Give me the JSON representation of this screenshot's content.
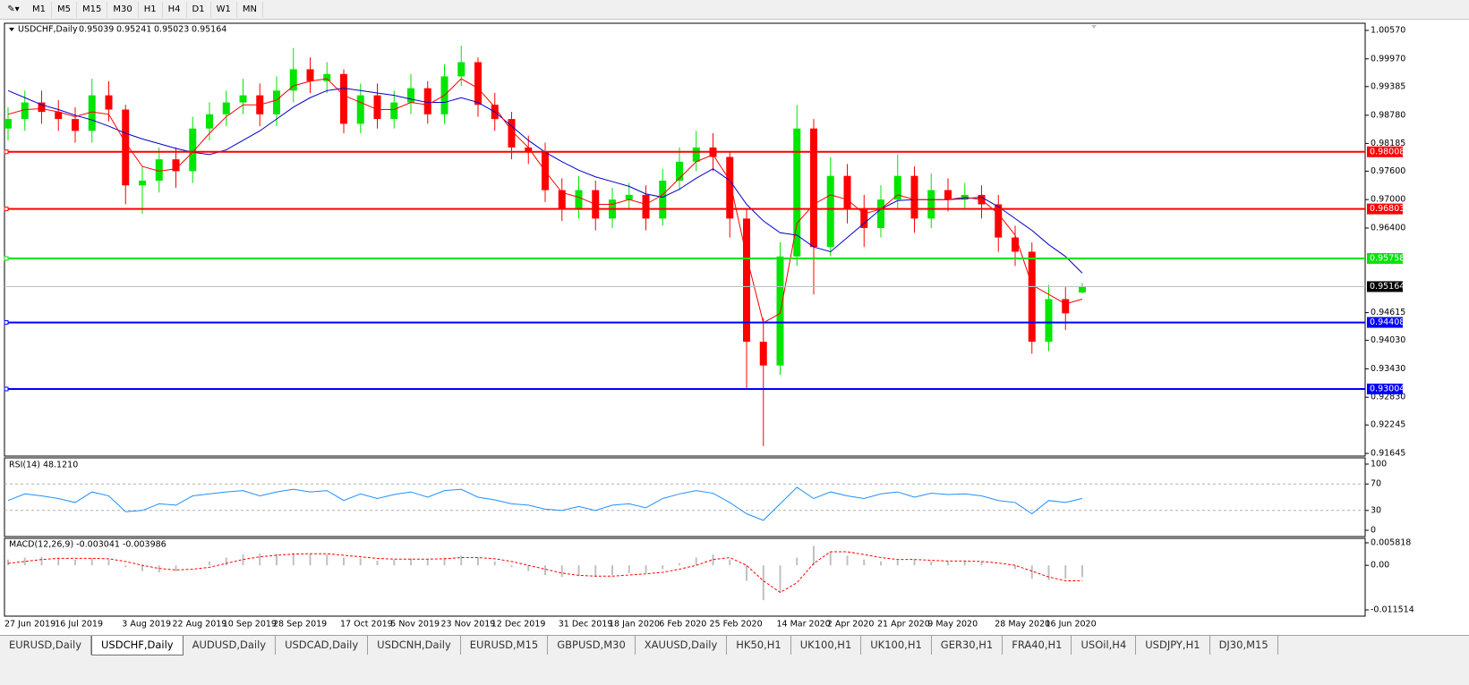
{
  "toolbar": {
    "timeframes": [
      "M1",
      "M5",
      "M15",
      "M30",
      "H1",
      "H4",
      "D1",
      "W1",
      "MN"
    ]
  },
  "chart_data": [
    {
      "type": "candlestick",
      "title": "USDCHF,Daily",
      "up_color": "#00e600",
      "down_color": "#ff0000",
      "ma_fast_color": "#ff0000",
      "ma_slow_color": "#0000c8",
      "price_line_color": "#c0c0c0",
      "categories": [
        "27 Jun 2019",
        null,
        null,
        "16 Jul 2019",
        null,
        null,
        null,
        "3 Aug 2019",
        null,
        null,
        "22 Aug 2019",
        null,
        null,
        "10 Sep 2019",
        null,
        null,
        "28 Sep 2019",
        null,
        null,
        null,
        "17 Oct 2019",
        null,
        null,
        "5 Nov 2019",
        null,
        null,
        "23 Nov 2019",
        null,
        null,
        "12 Dec 2019",
        null,
        null,
        null,
        "31 Dec 2019",
        null,
        null,
        "18 Jan 2020",
        null,
        null,
        "6 Feb 2020",
        null,
        null,
        "25 Feb 2020",
        null,
        null,
        null,
        "14 Mar 2020",
        null,
        null,
        "2 Apr 2020",
        null,
        null,
        "21 Apr 2020",
        null,
        null,
        "9 May 2020",
        null,
        null,
        null,
        "28 May 2020",
        null,
        null,
        "16 Jun 2020",
        null,
        null
      ],
      "open": [
        0.985,
        0.987,
        0.9905,
        0.9885,
        0.987,
        0.9845,
        0.992,
        0.989,
        0.973,
        0.974,
        0.9785,
        0.976,
        0.985,
        0.988,
        0.9905,
        0.992,
        0.988,
        0.993,
        0.9975,
        0.995,
        0.9965,
        0.986,
        0.992,
        0.987,
        0.9905,
        0.9935,
        0.988,
        0.996,
        0.999,
        0.99,
        0.987,
        0.981,
        0.98,
        0.972,
        0.968,
        0.972,
        0.966,
        0.97,
        0.971,
        0.966,
        0.974,
        0.978,
        0.981,
        0.979,
        0.966,
        0.94,
        0.935,
        0.958,
        0.985,
        0.96,
        0.975,
        0.968,
        0.964,
        0.97,
        0.975,
        0.966,
        0.972,
        0.97,
        0.971,
        0.969,
        0.962,
        0.959,
        0.94,
        0.949,
        0.95039
      ],
      "high": [
        0.9895,
        0.993,
        0.993,
        0.991,
        0.9895,
        0.9955,
        0.995,
        0.99,
        0.977,
        0.981,
        0.981,
        0.9875,
        0.9905,
        0.993,
        0.9955,
        0.9945,
        0.996,
        1.002,
        1.0,
        0.999,
        0.9975,
        0.9945,
        0.9945,
        0.993,
        0.9965,
        0.995,
        0.9985,
        1.0025,
        1.0,
        0.9925,
        0.9885,
        0.9835,
        0.982,
        0.9745,
        0.975,
        0.974,
        0.9725,
        0.9735,
        0.973,
        0.9765,
        0.981,
        0.9845,
        0.984,
        0.98,
        0.968,
        0.945,
        0.961,
        0.99,
        0.987,
        0.979,
        0.9775,
        0.971,
        0.973,
        0.9795,
        0.977,
        0.9755,
        0.9745,
        0.9735,
        0.973,
        0.971,
        0.9645,
        0.961,
        0.952,
        0.9515,
        0.95241
      ],
      "low": [
        0.9825,
        0.9845,
        0.986,
        0.9845,
        0.982,
        0.982,
        0.9865,
        0.969,
        0.967,
        0.9715,
        0.9725,
        0.9735,
        0.9825,
        0.9855,
        0.988,
        0.9855,
        0.9855,
        0.9905,
        0.9925,
        0.9925,
        0.984,
        0.984,
        0.985,
        0.985,
        0.988,
        0.986,
        0.986,
        0.994,
        0.9875,
        0.9845,
        0.9785,
        0.9775,
        0.9695,
        0.9655,
        0.966,
        0.9635,
        0.964,
        0.968,
        0.9635,
        0.9645,
        0.972,
        0.976,
        0.976,
        0.962,
        0.93,
        0.918,
        0.933,
        0.956,
        0.95,
        0.958,
        0.965,
        0.96,
        0.962,
        0.968,
        0.963,
        0.964,
        0.9675,
        0.968,
        0.966,
        0.959,
        0.956,
        0.9375,
        0.938,
        0.9425,
        0.95023
      ],
      "close": [
        0.987,
        0.9905,
        0.9885,
        0.987,
        0.9845,
        0.992,
        0.989,
        0.973,
        0.974,
        0.9785,
        0.976,
        0.985,
        0.988,
        0.9905,
        0.992,
        0.988,
        0.993,
        0.9975,
        0.995,
        0.9965,
        0.986,
        0.992,
        0.987,
        0.9905,
        0.9935,
        0.988,
        0.996,
        0.999,
        0.99,
        0.987,
        0.981,
        0.98,
        0.972,
        0.968,
        0.972,
        0.966,
        0.97,
        0.971,
        0.966,
        0.974,
        0.978,
        0.981,
        0.979,
        0.966,
        0.94,
        0.935,
        0.958,
        0.985,
        0.96,
        0.975,
        0.968,
        0.964,
        0.97,
        0.975,
        0.966,
        0.972,
        0.97,
        0.971,
        0.969,
        0.962,
        0.959,
        0.94,
        0.949,
        0.946,
        0.95164
      ],
      "ma_fast": [
        0.988,
        0.989,
        0.9892,
        0.9885,
        0.9875,
        0.9885,
        0.988,
        0.982,
        0.977,
        0.976,
        0.9765,
        0.98,
        0.984,
        0.9875,
        0.99,
        0.99,
        0.991,
        0.994,
        0.995,
        0.9955,
        0.992,
        0.9905,
        0.989,
        0.989,
        0.9905,
        0.99,
        0.992,
        0.9955,
        0.9935,
        0.9895,
        0.9845,
        0.981,
        0.976,
        0.9715,
        0.9705,
        0.969,
        0.969,
        0.97,
        0.969,
        0.971,
        0.9745,
        0.978,
        0.9795,
        0.974,
        0.958,
        0.944,
        0.946,
        0.965,
        0.969,
        0.971,
        0.97,
        0.967,
        0.968,
        0.971,
        0.97,
        0.97,
        0.97,
        0.9705,
        0.97,
        0.967,
        0.9625,
        0.952,
        0.95,
        0.948,
        0.949
      ],
      "ma_slow": [
        0.993,
        0.9915,
        0.99,
        0.989,
        0.9878,
        0.9868,
        0.9855,
        0.984,
        0.9828,
        0.9818,
        0.9808,
        0.98,
        0.9795,
        0.9805,
        0.9825,
        0.9845,
        0.987,
        0.9895,
        0.9915,
        0.993,
        0.9935,
        0.993,
        0.9925,
        0.992,
        0.9912,
        0.9905,
        0.9905,
        0.9915,
        0.9905,
        0.9885,
        0.9855,
        0.9825,
        0.98,
        0.978,
        0.9762,
        0.9748,
        0.9738,
        0.9728,
        0.9712,
        0.9705,
        0.9722,
        0.9745,
        0.9765,
        0.974,
        0.969,
        0.9655,
        0.963,
        0.9625,
        0.96,
        0.959,
        0.962,
        0.965,
        0.968,
        0.9698,
        0.97,
        0.97,
        0.97,
        0.9702,
        0.9705,
        0.9685,
        0.966,
        0.9635,
        0.9605,
        0.958,
        0.9545
      ],
      "ylim": [
        0.91645,
        1.0057
      ],
      "yticks": [
        {
          "value": 1.0057,
          "label": "1.00570"
        },
        {
          "value": 0.9997,
          "label": "0.99970"
        },
        0.99385,
        {
          "value": 0.9878,
          "label": "0.98780"
        },
        0.98185,
        {
          "value": 0.976,
          "label": "0.97600"
        },
        {
          "value": 0.97,
          "label": "0.97000"
        },
        {
          "value": 0.964,
          "label": "0.96400"
        },
        0.94615,
        {
          "value": 0.9403,
          "label": "0.94030"
        },
        {
          "value": 0.9343,
          "label": "0.93430"
        },
        {
          "value": 0.9283,
          "label": "0.92830"
        },
        0.92245,
        0.91645
      ],
      "levels": [
        {
          "value": 0.98008,
          "color": "#ff0000"
        },
        {
          "value": 0.96803,
          "color": "#ff0000"
        },
        {
          "value": 0.95758,
          "color": "#00e600"
        },
        {
          "value": 0.94408,
          "color": "#0000ff"
        },
        {
          "value": 0.93004,
          "color": "#0000ff"
        }
      ]
    },
    {
      "type": "line",
      "title": "RSI(14) 48.1210",
      "color": "#1e90ff",
      "grid": true,
      "values": [
        45,
        55,
        52,
        48,
        42,
        58,
        52,
        28,
        30,
        40,
        38,
        52,
        55,
        58,
        60,
        52,
        58,
        62,
        58,
        60,
        45,
        55,
        48,
        54,
        58,
        50,
        60,
        62,
        50,
        46,
        40,
        38,
        32,
        30,
        36,
        30,
        38,
        40,
        34,
        48,
        55,
        60,
        56,
        42,
        25,
        15,
        40,
        65,
        48,
        58,
        52,
        48,
        55,
        58,
        50,
        56,
        54,
        55,
        52,
        45,
        42,
        25,
        45,
        42,
        48.121
      ],
      "ylim": [
        0,
        100
      ],
      "yticks": [
        0,
        30,
        70,
        100
      ]
    },
    {
      "type": "macd",
      "title": "MACD(12,26,9) -0.003041 -0.003986",
      "color": "#c0c0c0",
      "signal_color": "#ff0000",
      "grid": false,
      "values": [
        0.0015,
        0.002,
        0.0022,
        0.002,
        0.0015,
        0.0018,
        0.0015,
        -0.0005,
        -0.0015,
        -0.0018,
        -0.0015,
        0,
        0.001,
        0.002,
        0.0028,
        0.003,
        0.003,
        0.0032,
        0.003,
        0.0028,
        0.002,
        0.0018,
        0.0012,
        0.0015,
        0.0018,
        0.0015,
        0.002,
        0.0025,
        0.002,
        0.001,
        -0.0005,
        -0.0015,
        -0.0025,
        -0.003,
        -0.0028,
        -0.003,
        -0.0025,
        -0.002,
        -0.002,
        -0.001,
        0.0005,
        0.002,
        0.0028,
        0.0015,
        -0.004,
        -0.009,
        -0.007,
        0.002,
        0.005,
        0.0035,
        0.0025,
        0.0015,
        0.001,
        0.0015,
        0.0015,
        0.001,
        0.001,
        0.0012,
        0.001,
        0,
        -0.001,
        -0.0035,
        -0.0038,
        -0.0035,
        -0.003041
      ],
      "signal": [
        0.0005,
        0.001,
        0.0015,
        0.0018,
        0.0018,
        0.0018,
        0.0017,
        0.001,
        0,
        -0.0008,
        -0.0012,
        -0.001,
        -0.0005,
        0.0005,
        0.0015,
        0.0022,
        0.0026,
        0.0029,
        0.003,
        0.003,
        0.0026,
        0.0022,
        0.0018,
        0.0016,
        0.0016,
        0.0016,
        0.0017,
        0.002,
        0.002,
        0.0017,
        0.001,
        0,
        -0.001,
        -0.002,
        -0.0026,
        -0.0028,
        -0.0028,
        -0.0025,
        -0.0022,
        -0.0018,
        -0.001,
        0,
        0.0015,
        0.002,
        0,
        -0.004,
        -0.007,
        -0.0045,
        0.0005,
        0.0035,
        0.0035,
        0.0028,
        0.002,
        0.0015,
        0.0015,
        0.0013,
        0.0011,
        0.0011,
        0.001,
        0.0006,
        0,
        -0.0015,
        -0.003,
        -0.004,
        -0.003986
      ],
      "ylim": [
        -0.011514,
        0.005818
      ],
      "yticks": [
        0.005818,
        {
          "value": 0,
          "label": "0.00"
        },
        -0.011514
      ]
    }
  ],
  "tabs": {
    "active": 1,
    "items": [
      "EURUSD,Daily",
      "USDCHF,Daily",
      "AUDUSD,Daily",
      "USDCAD,Daily",
      "USDCNH,Daily",
      "EURUSD,M15",
      "GBPUSD,M30",
      "XAUUSD,Daily",
      "HK50,H1",
      "UK100,H1",
      "UK100,H1",
      "GER30,H1",
      "FRA40,H1",
      "USOil,H4",
      "USDJPY,H1",
      "DJ30,M15"
    ]
  }
}
